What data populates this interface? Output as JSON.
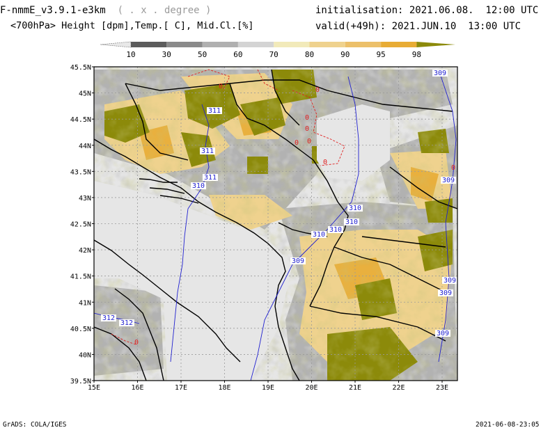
{
  "header": {
    "model": "F-nmmE_v3.9.1-e3km",
    "grid": "( . x . degree )",
    "fields": "<700hPa> Height [dpm],Temp.[ C], Mid.Cl.[%]",
    "init": "initialisation: 2021.06.08.  12:00 UTC",
    "valid": "valid(+49h): 2021.JUN.10  13:00 UTC"
  },
  "legend": {
    "unit": "%",
    "levels": [
      "10",
      "30",
      "50",
      "60",
      "70",
      "80",
      "90",
      "95",
      "98"
    ],
    "colors": [
      "#e8e8e8",
      "#5c5c5c",
      "#8a8a8a",
      "#b0b0b0",
      "#d4d4d4",
      "#f2eaba",
      "#efd28e",
      "#ecc06a",
      "#e8ac35",
      "#8c8a0a"
    ]
  },
  "map": {
    "lat_labels": [
      "45.5N",
      "45N",
      "44.5N",
      "44N",
      "43.5N",
      "43N",
      "42.5N",
      "42N",
      "41.5N",
      "41N",
      "40.5N",
      "40N",
      "39.5N"
    ],
    "lon_labels": [
      "15E",
      "16E",
      "17E",
      "18E",
      "19E",
      "20E",
      "21E",
      "22E",
      "23E"
    ],
    "height_contours": [
      "311",
      "311",
      "311",
      "310",
      "310",
      "310",
      "310",
      "310",
      "309",
      "309",
      "309",
      "309",
      "309",
      "312",
      "312",
      "309"
    ],
    "temp_contours": [
      "0",
      "0",
      "0",
      "0",
      "0",
      "0",
      "0",
      "0",
      "0"
    ],
    "colors": {
      "background": "#e6e6e6",
      "height_contour": "#2020d0",
      "temp_contour": "#e02020",
      "coast": "#000000",
      "grid": "#9a9a9a"
    }
  },
  "footer": {
    "left": "GrADS: COLA/IGES",
    "right": "2021-06-08-23:05"
  }
}
